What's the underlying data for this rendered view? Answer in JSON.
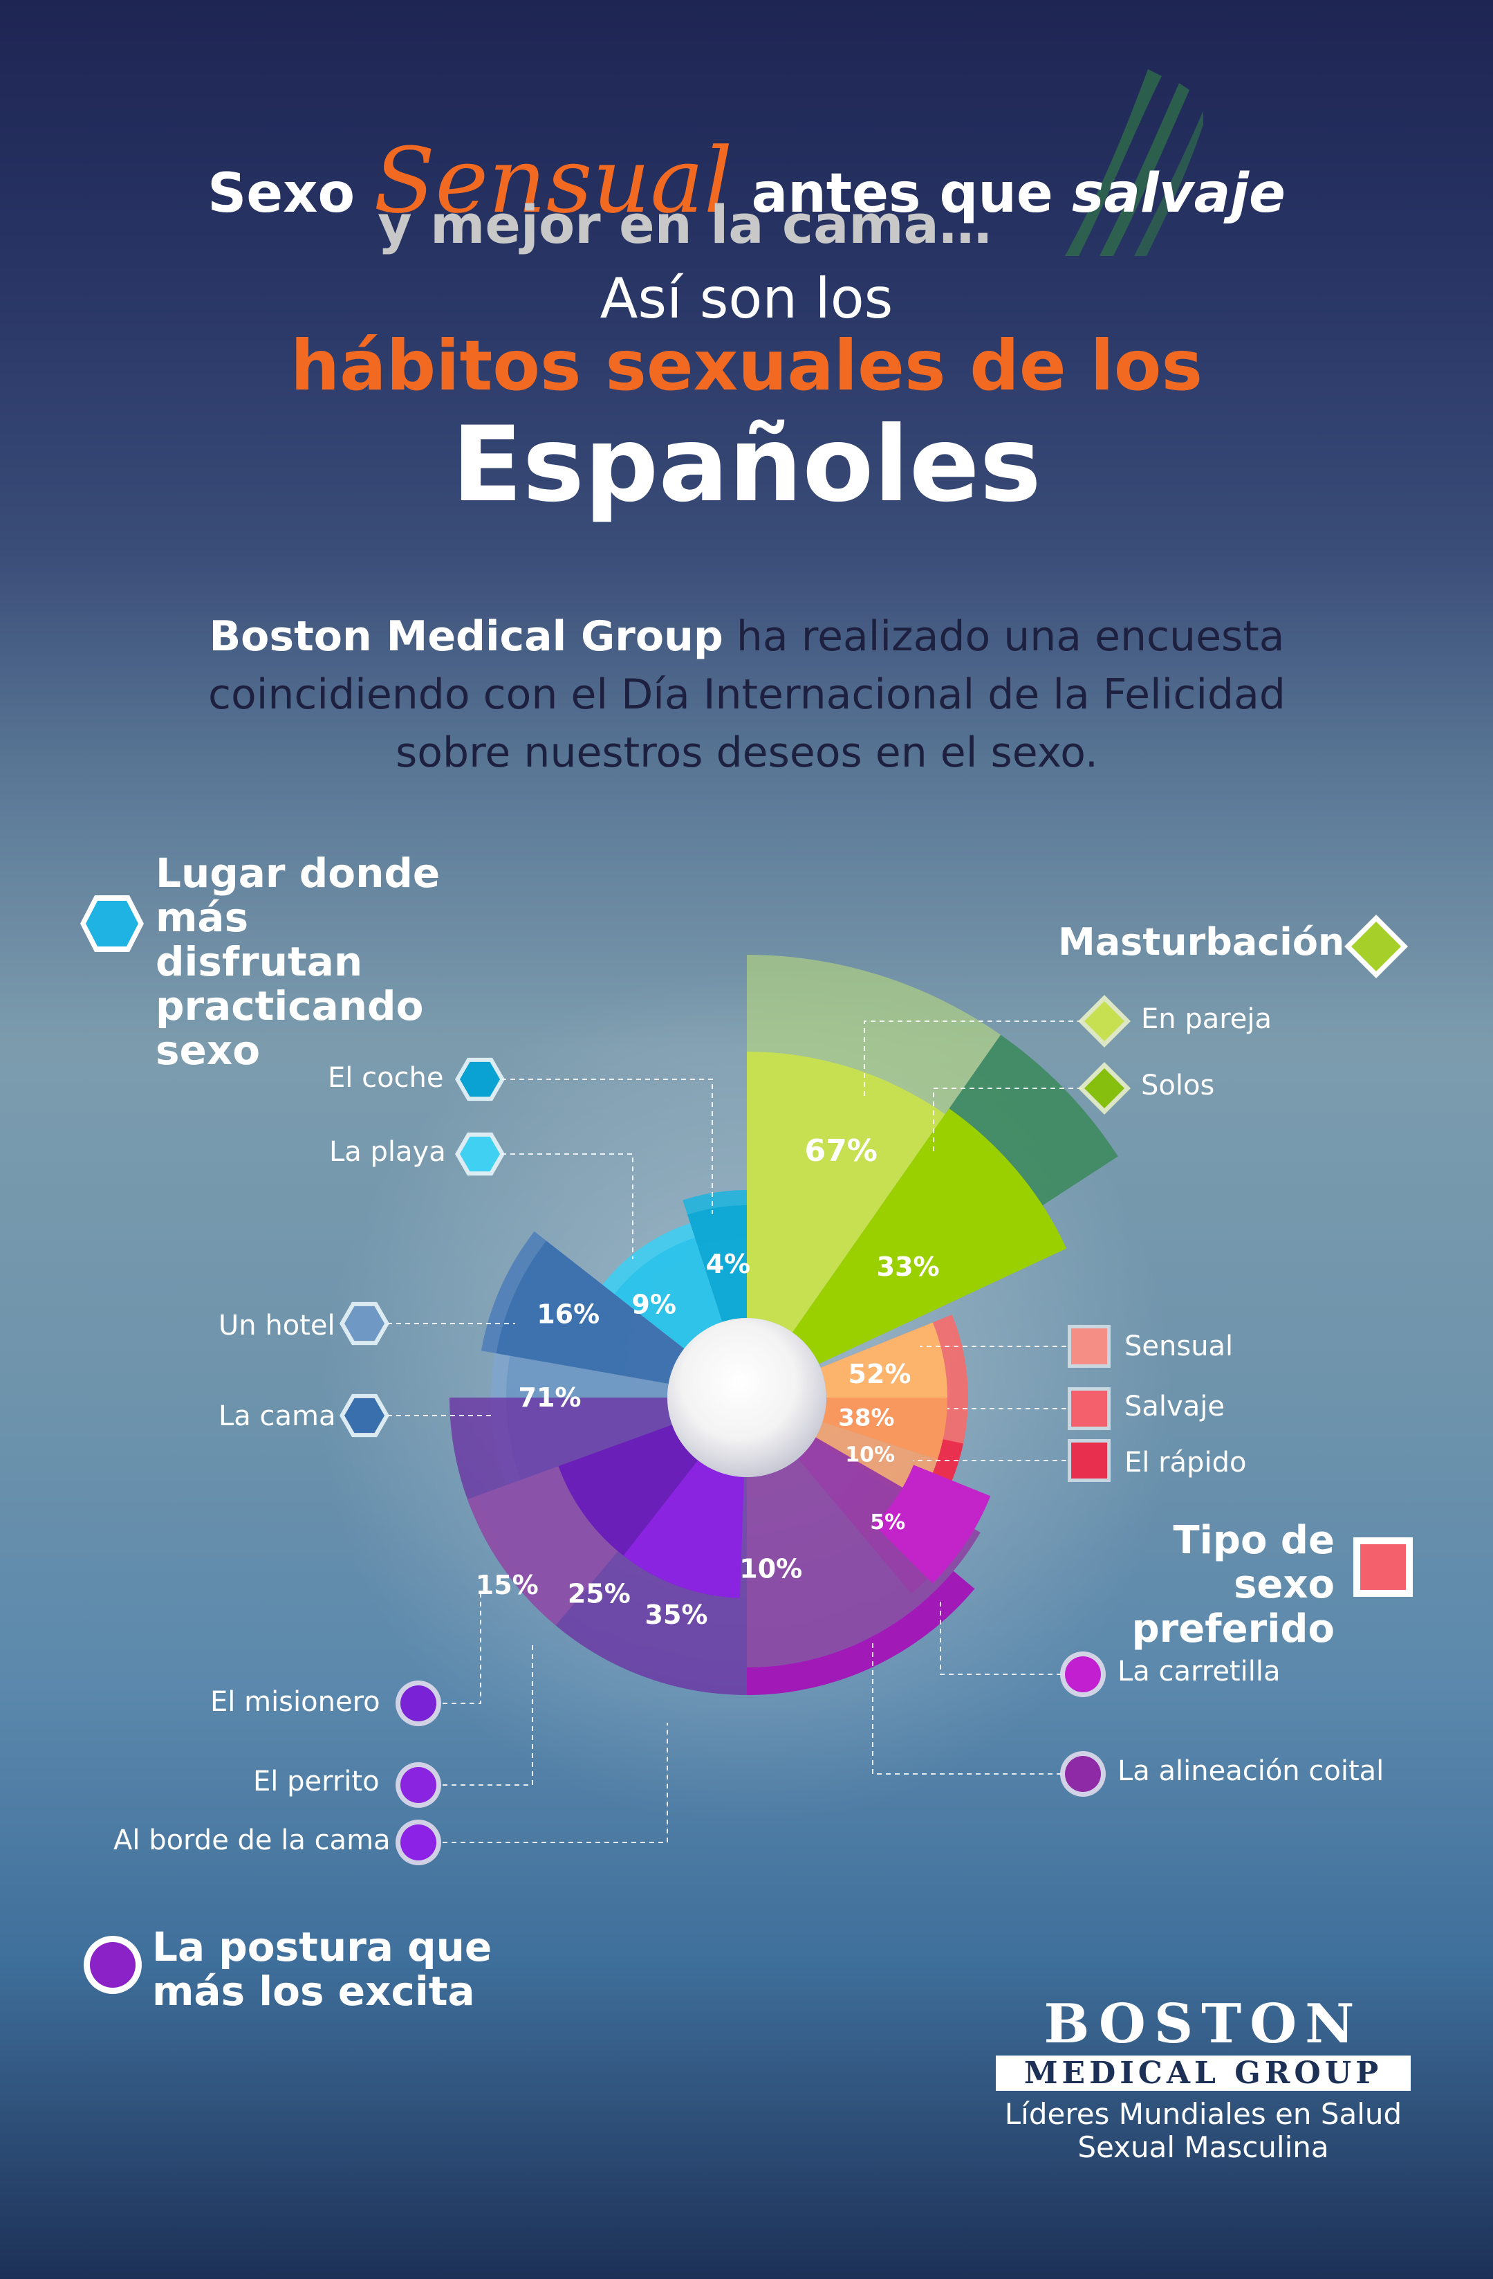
{
  "header": {
    "line1_a": "Sexo",
    "line1_b": "Sensual",
    "line1_c": "antes que",
    "line1_d": "salvaje",
    "line2": "y mejor en la cama…",
    "line3": "Así son los",
    "line4": "hábitos sexuales de los",
    "line5": "Españoles"
  },
  "intro": {
    "bold": "Boston Medical Group",
    "rest1": " ha realizado una encuesta",
    "line2": "coincidiendo con el Día Internacional de la Felicidad",
    "line3": "sobre nuestros deseos en el sexo."
  },
  "legends": {
    "lugar": "Lugar donde más disfrutan practicando sexo",
    "masturbacion": "Masturbación",
    "tipo": "Tipo de sexo preferido",
    "postura": "La postura que más los excita"
  },
  "labels": {
    "coche": "El coche",
    "playa": "La playa",
    "hotel": "Un hotel",
    "cama": "La cama",
    "pareja": "En pareja",
    "solos": "Solos",
    "sensual": "Sensual",
    "salvaje": "Salvaje",
    "rapido": "El rápido",
    "carretilla": "La carretilla",
    "alineacion": "La alineación coital",
    "misionero": "El misionero",
    "perrito": "El perrito",
    "borde": "Al borde de la cama"
  },
  "logo": {
    "word": "BOSTON",
    "sub": "MEDICAL GROUP",
    "tag1": "Líderes Mundiales en Salud",
    "tag2": "Sexual Masculina"
  },
  "colors": {
    "lugar": "#29c4ec",
    "masturbacion": "#b3d334",
    "tipo": "#f4606c",
    "postura": "#8a2be2",
    "accent": "#f26a21"
  },
  "chart_data": [
    {
      "type": "pie",
      "title": "Lugar donde más disfrutan practicando sexo",
      "categories": [
        "El coche",
        "La playa",
        "Un hotel",
        "La cama"
      ],
      "values": [
        4,
        9,
        16,
        71
      ],
      "labels": [
        "4%",
        "9%",
        "16%",
        "71%"
      ]
    },
    {
      "type": "pie",
      "title": "Masturbación",
      "categories": [
        "En pareja",
        "Solos"
      ],
      "values": [
        67,
        33
      ],
      "labels": [
        "67%",
        "33%"
      ]
    },
    {
      "type": "pie",
      "title": "Tipo de sexo preferido",
      "categories": [
        "Sensual",
        "Salvaje",
        "El rápido"
      ],
      "values": [
        52,
        38,
        10
      ],
      "labels": [
        "52%",
        "38%",
        "10%"
      ]
    },
    {
      "type": "pie",
      "title": "La postura que más los excita",
      "categories": [
        "La carretilla",
        "La alineación coital",
        "El misionero",
        "El perrito",
        "Al borde de la cama"
      ],
      "values": [
        5,
        10,
        15,
        25,
        35
      ],
      "labels": [
        "5%",
        "10%",
        "15%",
        "25%",
        "35%"
      ]
    }
  ]
}
